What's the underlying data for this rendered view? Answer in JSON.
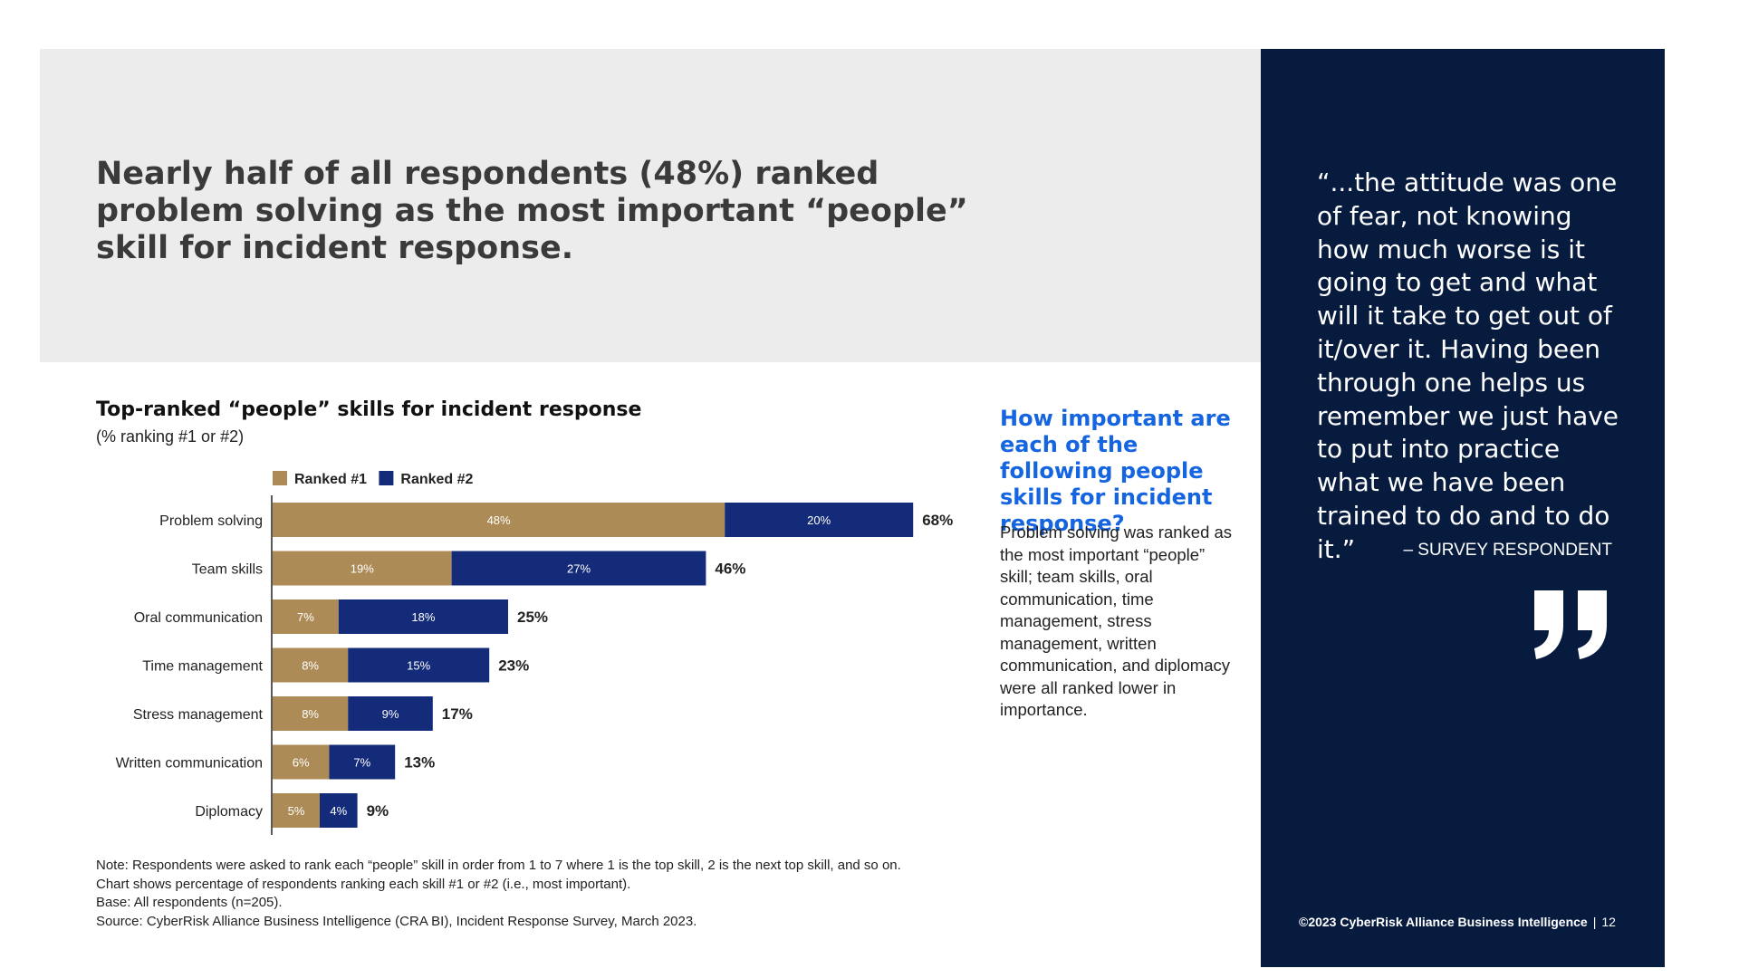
{
  "headline": "Nearly half of all respondents (48%) ranked problem solving as the most important “people” skill for incident response.",
  "chart_data": {
    "type": "bar",
    "orientation": "horizontal",
    "stacked": true,
    "title": "Top-ranked “people” skills for incident response",
    "subtitle": "(% ranking #1 or #2)",
    "categories": [
      "Problem solving",
      "Team skills",
      "Oral communication",
      "Time management",
      "Stress management",
      "Written communication",
      "Diplomacy"
    ],
    "series": [
      {
        "name": "Ranked #1",
        "color": "#ac8b56",
        "values": [
          48,
          19,
          7,
          8,
          8,
          6,
          5
        ]
      },
      {
        "name": "Ranked #2",
        "color": "#142b7a",
        "values": [
          20,
          27,
          18,
          15,
          9,
          7,
          4
        ]
      }
    ],
    "totals": [
      68,
      46,
      25,
      23,
      17,
      13,
      9
    ],
    "unit": "%",
    "legend_position": "top",
    "grid": false
  },
  "notes": [
    "Note: Respondents were asked to rank each “people” skill in order from 1 to 7 where 1 is the top skill, 2 is the next top skill, and so on.",
    "Chart shows percentage of respondents ranking each skill #1 or #2 (i.e., most important).",
    "Base: All respondents (n=205).",
    "Source: CyberRisk Alliance Business Intelligence (CRA BI), Incident Response Survey, March 2023."
  ],
  "sidebar": {
    "question": "How important are each of the following people skills for incident response?",
    "body": "Problem solving was ranked as the most important “people” skill; team skills, oral communication, time management, stress management, written communication, and diplomacy were all ranked lower in importance."
  },
  "quote": {
    "text": "“...the attitude was one of fear, not knowing how much worse is it going to get and what will it take to get out of it/over it. Having been through one helps us remember we just have to put into practice what we have been trained to do and to do it.”",
    "attribution": "– SURVEY RESPONDENT",
    "icon": "closing-quote-icon"
  },
  "footer": {
    "copyright": "©2023 CyberRisk Alliance Business Intelligence",
    "separator": "|",
    "page": "12"
  },
  "colors": {
    "panel": "#071b3f",
    "accent_blue": "#1565e0",
    "header_band": "#ececec"
  }
}
